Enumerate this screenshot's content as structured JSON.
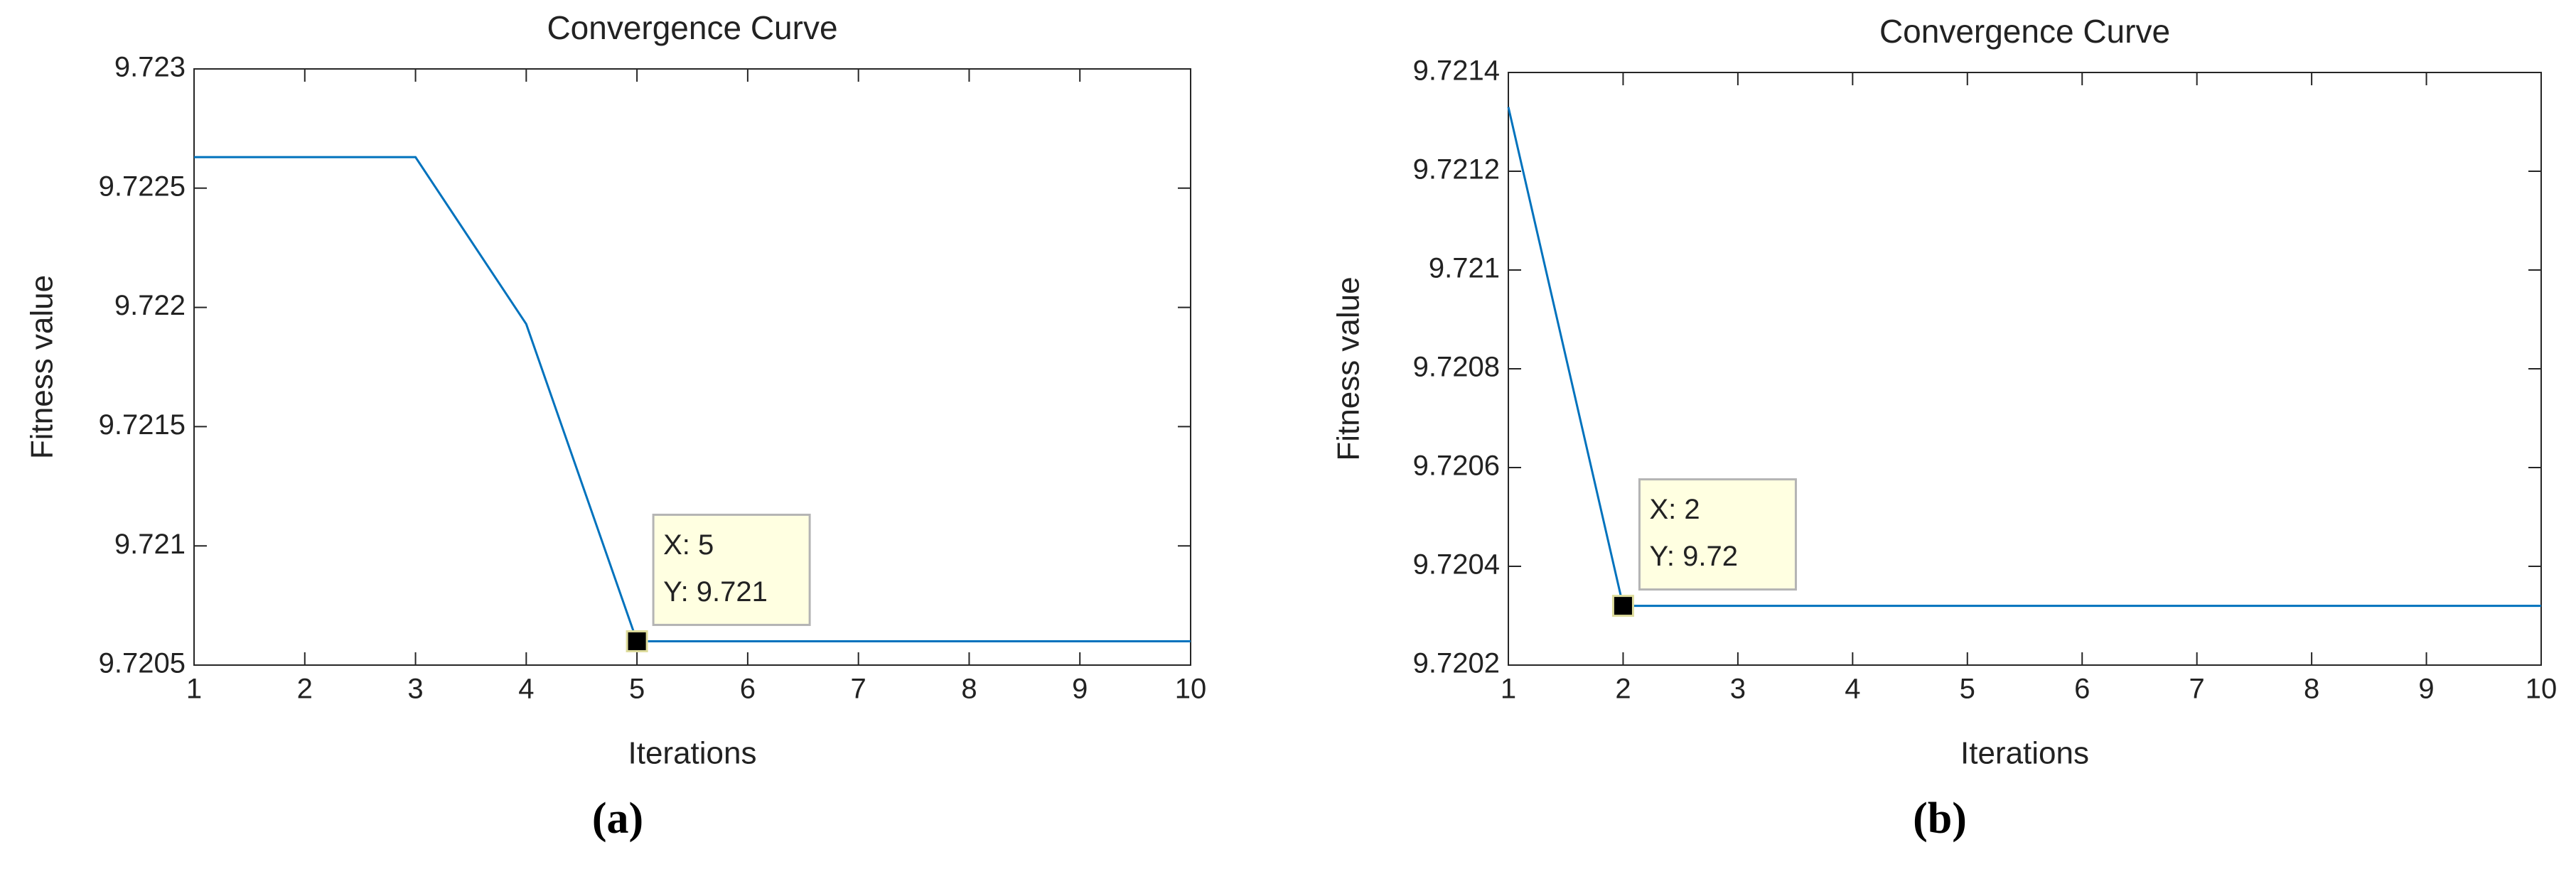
{
  "chart_data": [
    {
      "type": "line",
      "title": "Convergence Curve",
      "xlabel": "Iterations",
      "ylabel": "Fitness value",
      "panel": "(a)",
      "x": [
        1,
        2,
        3,
        4,
        5,
        6,
        7,
        8,
        9,
        10
      ],
      "series": [
        {
          "color": "#0072bd",
          "values": [
            9.72263,
            9.72263,
            9.72263,
            9.72193,
            9.7206,
            9.7206,
            9.7206,
            9.7206,
            9.7206,
            9.7206
          ]
        }
      ],
      "xlim": [
        1,
        10
      ],
      "xticks": [
        1,
        2,
        3,
        4,
        5,
        6,
        7,
        8,
        9,
        10
      ],
      "ylim": [
        9.7205,
        9.723
      ],
      "yticks": [
        9.7205,
        9.721,
        9.7215,
        9.722,
        9.7225,
        9.723
      ],
      "datatip": {
        "x": 5,
        "label": [
          "X: 5",
          "Y: 9.721"
        ]
      }
    },
    {
      "type": "line",
      "title": "Convergence Curve",
      "xlabel": "Iterations",
      "ylabel": "Fitness value",
      "panel": "(b)",
      "x": [
        1,
        2,
        3,
        4,
        5,
        6,
        7,
        8,
        9,
        10
      ],
      "series": [
        {
          "color": "#0072bd",
          "values": [
            9.72133,
            9.72032,
            9.72032,
            9.72032,
            9.72032,
            9.72032,
            9.72032,
            9.72032,
            9.72032,
            9.72032
          ]
        }
      ],
      "xlim": [
        1,
        10
      ],
      "xticks": [
        1,
        2,
        3,
        4,
        5,
        6,
        7,
        8,
        9,
        10
      ],
      "ylim": [
        9.7202,
        9.7214
      ],
      "yticks": [
        9.7202,
        9.7204,
        9.7206,
        9.7208,
        9.721,
        9.7212,
        9.7214
      ],
      "datatip": {
        "x": 2,
        "label": [
          "X: 2",
          "Y: 9.72"
        ]
      }
    }
  ]
}
